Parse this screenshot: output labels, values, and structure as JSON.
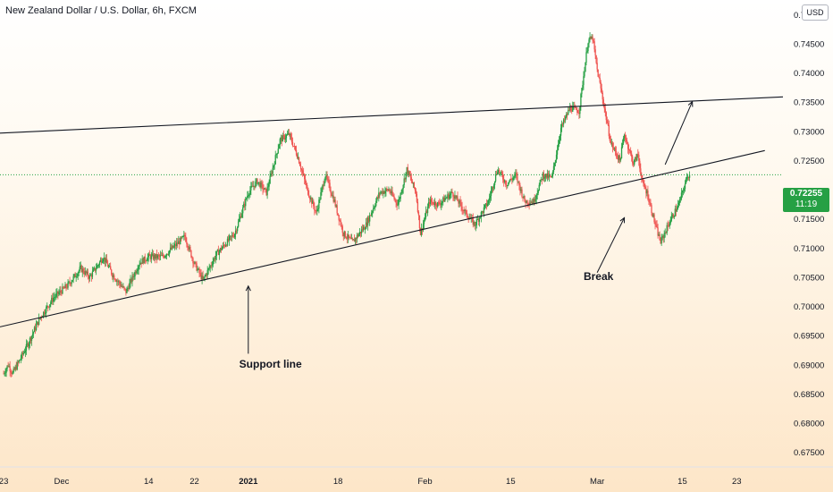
{
  "header": {
    "title": "New Zealand Dollar / U.S. Dollar, 6h, FXCM",
    "currency": "USD"
  },
  "price_tag": {
    "value": "0.72255",
    "countdown": "11:19"
  },
  "colors": {
    "up": "#26a044",
    "down": "#ef5350",
    "line": "#131722"
  },
  "chart_data": {
    "type": "candlestick",
    "symbol": "NZDUSD",
    "timeframe": "6h",
    "ylim": [
      0.6725,
      0.7525
    ],
    "y_ticks": [
      {
        "value": 0.675,
        "label": "0.67500"
      },
      {
        "value": 0.68,
        "label": "0.68000"
      },
      {
        "value": 0.685,
        "label": "0.68500"
      },
      {
        "value": 0.69,
        "label": "0.69000"
      },
      {
        "value": 0.695,
        "label": "0.69500"
      },
      {
        "value": 0.7,
        "label": "0.70000"
      },
      {
        "value": 0.705,
        "label": "0.70500"
      },
      {
        "value": 0.71,
        "label": "0.71000"
      },
      {
        "value": 0.715,
        "label": "0.71500"
      },
      {
        "value": 0.725,
        "label": "0.72500"
      },
      {
        "value": 0.73,
        "label": "0.73000"
      },
      {
        "value": 0.735,
        "label": "0.73500"
      },
      {
        "value": 0.74,
        "label": "0.74000"
      },
      {
        "value": 0.745,
        "label": "0.74500"
      },
      {
        "value": 0.75,
        "label": "0.75000"
      }
    ],
    "x_ticks": [
      {
        "label": "23",
        "strong": false
      },
      {
        "label": "Dec",
        "strong": false
      },
      {
        "label": "14",
        "strong": false
      },
      {
        "label": "22",
        "strong": false
      },
      {
        "label": "2021",
        "strong": true
      },
      {
        "label": "18",
        "strong": false
      },
      {
        "label": "Feb",
        "strong": false
      },
      {
        "label": "15",
        "strong": false
      },
      {
        "label": "Mar",
        "strong": false
      },
      {
        "label": "15",
        "strong": false
      },
      {
        "label": "23",
        "strong": false
      }
    ],
    "x_tick_index": [
      0,
      12.8,
      32,
      42.1,
      54,
      73.8,
      93,
      111.9,
      131,
      149.8,
      161.8
    ],
    "x_range": [
      -0.8,
      172
    ],
    "last_price": 0.72255,
    "bars_per_step": 5,
    "path": [
      {
        "i": 0,
        "v": 0.6885
      },
      {
        "i": 1,
        "v": 0.69
      },
      {
        "i": 2,
        "v": 0.6885
      },
      {
        "i": 5,
        "v": 0.693
      },
      {
        "i": 8,
        "v": 0.698
      },
      {
        "i": 11,
        "v": 0.7015
      },
      {
        "i": 14,
        "v": 0.7035
      },
      {
        "i": 17,
        "v": 0.7065
      },
      {
        "i": 19,
        "v": 0.705
      },
      {
        "i": 22,
        "v": 0.7085
      },
      {
        "i": 24,
        "v": 0.7055
      },
      {
        "i": 27,
        "v": 0.7025
      },
      {
        "i": 30,
        "v": 0.7075
      },
      {
        "i": 32,
        "v": 0.7085
      },
      {
        "i": 35,
        "v": 0.7085
      },
      {
        "i": 38,
        "v": 0.7105
      },
      {
        "i": 40,
        "v": 0.712
      },
      {
        "i": 42,
        "v": 0.7075
      },
      {
        "i": 44,
        "v": 0.7045
      },
      {
        "i": 47,
        "v": 0.709
      },
      {
        "i": 51,
        "v": 0.7125
      },
      {
        "i": 54,
        "v": 0.7195
      },
      {
        "i": 56,
        "v": 0.7215
      },
      {
        "i": 58,
        "v": 0.7195
      },
      {
        "i": 61,
        "v": 0.7285
      },
      {
        "i": 63,
        "v": 0.7295
      },
      {
        "i": 65,
        "v": 0.7255
      },
      {
        "i": 67,
        "v": 0.72
      },
      {
        "i": 69,
        "v": 0.716
      },
      {
        "i": 71,
        "v": 0.7225
      },
      {
        "i": 73,
        "v": 0.718
      },
      {
        "i": 75,
        "v": 0.7125
      },
      {
        "i": 77,
        "v": 0.711
      },
      {
        "i": 80,
        "v": 0.714
      },
      {
        "i": 83,
        "v": 0.7195
      },
      {
        "i": 85,
        "v": 0.72
      },
      {
        "i": 87,
        "v": 0.7175
      },
      {
        "i": 89,
        "v": 0.7235
      },
      {
        "i": 91,
        "v": 0.7195
      },
      {
        "i": 92,
        "v": 0.7125
      },
      {
        "i": 94,
        "v": 0.718
      },
      {
        "i": 96,
        "v": 0.7175
      },
      {
        "i": 99,
        "v": 0.7195
      },
      {
        "i": 102,
        "v": 0.716
      },
      {
        "i": 104,
        "v": 0.714
      },
      {
        "i": 107,
        "v": 0.718
      },
      {
        "i": 109,
        "v": 0.7235
      },
      {
        "i": 111,
        "v": 0.721
      },
      {
        "i": 113,
        "v": 0.7225
      },
      {
        "i": 115,
        "v": 0.718
      },
      {
        "i": 117,
        "v": 0.718
      },
      {
        "i": 119,
        "v": 0.7225
      },
      {
        "i": 121,
        "v": 0.722
      },
      {
        "i": 123,
        "v": 0.7305
      },
      {
        "i": 125,
        "v": 0.734
      },
      {
        "i": 127,
        "v": 0.7335
      },
      {
        "i": 129,
        "v": 0.7455
      },
      {
        "i": 130,
        "v": 0.746
      },
      {
        "i": 131,
        "v": 0.7405
      },
      {
        "i": 132,
        "v": 0.7365
      },
      {
        "i": 134,
        "v": 0.728
      },
      {
        "i": 136,
        "v": 0.725
      },
      {
        "i": 137,
        "v": 0.7295
      },
      {
        "i": 139,
        "v": 0.7245
      },
      {
        "i": 140,
        "v": 0.726
      },
      {
        "i": 141,
        "v": 0.721
      },
      {
        "i": 142,
        "v": 0.7195
      },
      {
        "i": 144,
        "v": 0.7135
      },
      {
        "i": 145,
        "v": 0.711
      },
      {
        "i": 147,
        "v": 0.7145
      },
      {
        "i": 149,
        "v": 0.7175
      },
      {
        "i": 151,
        "v": 0.7225
      },
      {
        "i": 151.5,
        "v": 0.72255
      }
    ],
    "trendlines": [
      {
        "name": "resistance",
        "from": {
          "i": -0.8,
          "v": 0.7297
        },
        "to": {
          "i": 172,
          "v": 0.7359
        }
      },
      {
        "name": "support",
        "from": {
          "i": -0.8,
          "v": 0.6965
        },
        "to": {
          "i": 168,
          "v": 0.7267
        }
      }
    ],
    "arrows": [
      {
        "name": "support-arrow",
        "from": {
          "i": 54,
          "v": 0.6919
        },
        "to": {
          "i": 54,
          "v": 0.7035
        }
      },
      {
        "name": "break-arrow",
        "from": {
          "i": 131,
          "v": 0.7058
        },
        "to": {
          "i": 137,
          "v": 0.7152
        }
      },
      {
        "name": "projection-arrow",
        "from": {
          "i": 146,
          "v": 0.7243
        },
        "to": {
          "i": 152,
          "v": 0.7351
        }
      }
    ],
    "annotations": [
      {
        "name": "support-line-label",
        "text": "Support line",
        "at": {
          "i": 52,
          "v": 0.6895
        }
      },
      {
        "name": "break-label",
        "text": "Break",
        "at": {
          "i": 128,
          "v": 0.7045
        }
      }
    ]
  }
}
